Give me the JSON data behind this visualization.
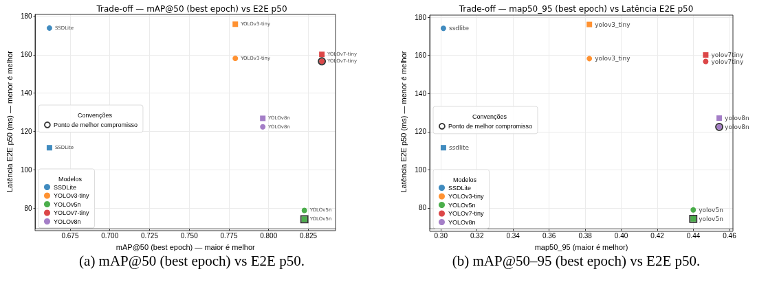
{
  "chart_data": [
    {
      "type": "scatter",
      "title": "Trade-off — mAP@50 (best epoch) vs E2E p50",
      "xlabel": "mAP@50 (best epoch) — maior é melhor",
      "ylabel": "Latência E2E p50 (ms) — menor é melhor",
      "xlim": [
        0.6532,
        0.8421
      ],
      "xticks": [
        {
          "value": 0.675,
          "label": "0.675"
        },
        {
          "value": 0.7,
          "label": "0.700"
        },
        {
          "value": 0.725,
          "label": "0.725"
        },
        {
          "value": 0.75,
          "label": "0.750"
        },
        {
          "value": 0.775,
          "label": "0.775"
        },
        {
          "value": 0.8,
          "label": "0.800"
        },
        {
          "value": 0.825,
          "label": "0.825"
        }
      ],
      "ylim": [
        69.5,
        181
      ],
      "yticks": [
        80,
        100,
        120,
        140,
        160,
        180
      ],
      "grid": true,
      "legend": "bottom left",
      "legend_title": "Modelos",
      "annotations": [
        "Convenções",
        "(a) mAP@50 (best epoch) vs E2E p50."
      ],
      "series": [
        {
          "name": "SSDLite",
          "color": "#1f77b4",
          "marker": "circle",
          "x": [
            0.662
          ],
          "values": [
            173.9
          ],
          "value_labels": [
            "SSDLite"
          ]
        },
        {
          "color": "#1f77b4",
          "marker": "square",
          "x": [
            0.662
          ],
          "values": [
            111.6
          ],
          "value_labels": [
            "SSDLite"
          ]
        },
        {
          "name": "YOLOv3-tiny",
          "color": "#ff7f0e",
          "marker": "circle",
          "x": [
            0.779
          ],
          "values": [
            158.1
          ],
          "value_labels": [
            "YOLOv3-tiny"
          ]
        },
        {
          "color": "#ff7f0e",
          "marker": "square",
          "x": [
            0.779
          ],
          "values": [
            175.9
          ],
          "value_labels": [
            "YOLOv3-tiny"
          ]
        },
        {
          "name": "YOLOv5n",
          "color": "#2ca02c",
          "marker": "circle",
          "x": [
            0.8225
          ],
          "values": [
            79.0
          ],
          "value_labels": [
            "YOLOv5n"
          ]
        },
        {
          "color": "#2ca02c",
          "marker": "square",
          "x": [
            0.8225
          ],
          "values": [
            74.4
          ],
          "value_labels": [
            "YOLOv5n"
          ]
        },
        {
          "name": "YOLOv7-tiny",
          "color": "#d62728",
          "marker": "circle",
          "x": [
            0.8335
          ],
          "values": [
            156.6
          ],
          "value_labels": [
            "YOLOv7-tiny"
          ]
        },
        {
          "color": "#d62728",
          "marker": "square",
          "x": [
            0.8335
          ],
          "values": [
            160.2
          ],
          "value_labels": [
            "YOLOv7-tiny"
          ]
        },
        {
          "name": "YOLOv8n",
          "color": "#9467bd",
          "marker": "circle",
          "x": [
            0.7963
          ],
          "values": [
            122.5
          ],
          "value_labels": [
            "YOLOv8n"
          ]
        },
        {
          "color": "#9467bd",
          "marker": "square",
          "x": [
            0.7963
          ],
          "values": [
            126.9
          ],
          "value_labels": [
            "YOLOv8n"
          ]
        },
        {
          "name": "Ponto de melhor compromisso",
          "color": "#000000",
          "marker": "circle",
          "x": [
            0.8335
          ],
          "values": [
            156.6
          ]
        },
        {
          "color": "#000000",
          "marker": "square",
          "x": [
            0.8225
          ],
          "values": [
            74.4
          ]
        }
      ]
    },
    {
      "type": "scatter",
      "title": "Trade-off — map50_95 (best epoch) vs Latência E2E p50",
      "xlabel": "map50_95 (maior é melhor)",
      "ylabel": "Latência E2E p50 (ms) — menor é melhor",
      "xlim": [
        0.2938,
        0.4619
      ],
      "xticks": [
        {
          "value": 0.3,
          "label": "0.30"
        },
        {
          "value": 0.32,
          "label": "0.32"
        },
        {
          "value": 0.34,
          "label": "0.34"
        },
        {
          "value": 0.36,
          "label": "0.36"
        },
        {
          "value": 0.38,
          "label": "0.38"
        },
        {
          "value": 0.4,
          "label": "0.40"
        },
        {
          "value": 0.42,
          "label": "0.42"
        },
        {
          "value": 0.44,
          "label": "0.44"
        },
        {
          "value": 0.46,
          "label": "0.46"
        }
      ],
      "ylim": [
        69.2,
        181.1
      ],
      "yticks": [
        80,
        100,
        120,
        140,
        160,
        180
      ],
      "grid": true,
      "legend": "bottom left",
      "legend_title": "Modelos",
      "annotations": [
        "Convenções",
        "(b) mAP@50–95 (best epoch) vs E2E p50."
      ],
      "series": [
        {
          "name": "SSDLite",
          "color": "#1f77b4",
          "marker": "circle",
          "x": [
            0.3014
          ],
          "values": [
            174.2
          ],
          "value_labels": [
            "ssdlite"
          ]
        },
        {
          "color": "#1f77b4",
          "marker": "square",
          "x": [
            0.3014
          ],
          "values": [
            111.6
          ],
          "value_labels": [
            "ssdlite"
          ]
        },
        {
          "name": "YOLOv3-tiny",
          "color": "#ff7f0e",
          "marker": "circle",
          "x": [
            0.3823
          ],
          "values": [
            158.3
          ],
          "value_labels": [
            "yolov3_tiny"
          ]
        },
        {
          "color": "#ff7f0e",
          "marker": "square",
          "x": [
            0.3823
          ],
          "values": [
            176.2
          ],
          "value_labels": [
            "yolov3_tiny"
          ]
        },
        {
          "name": "YOLOv5n",
          "color": "#2ca02c",
          "marker": "circle",
          "x": [
            0.4399
          ],
          "values": [
            79.0
          ],
          "value_labels": [
            "yolov5n"
          ]
        },
        {
          "color": "#2ca02c",
          "marker": "square",
          "x": [
            0.4399
          ],
          "values": [
            74.3
          ],
          "value_labels": [
            "yolov5n"
          ]
        },
        {
          "name": "YOLOv7-tiny",
          "color": "#d62728",
          "marker": "circle",
          "x": [
            0.4468
          ],
          "values": [
            156.8
          ],
          "value_labels": [
            "yolov7tiny"
          ]
        },
        {
          "color": "#d62728",
          "marker": "square",
          "x": [
            0.4468
          ],
          "values": [
            160.2
          ],
          "value_labels": [
            "yolov7tiny"
          ]
        },
        {
          "name": "YOLOv8n",
          "color": "#9467bd",
          "marker": "circle",
          "x": [
            0.4543
          ],
          "values": [
            122.5
          ],
          "value_labels": [
            "yolov8n"
          ]
        },
        {
          "color": "#9467bd",
          "marker": "square",
          "x": [
            0.4543
          ],
          "values": [
            127.1
          ],
          "value_labels": [
            "yolov8n"
          ]
        },
        {
          "name": "Ponto de melhor compromisso",
          "color": "#000000",
          "marker": "circle",
          "x": [
            0.4543
          ],
          "values": [
            122.5
          ]
        },
        {
          "color": "#000000",
          "marker": "square",
          "x": [
            0.4399
          ],
          "values": [
            74.3
          ]
        }
      ]
    }
  ]
}
